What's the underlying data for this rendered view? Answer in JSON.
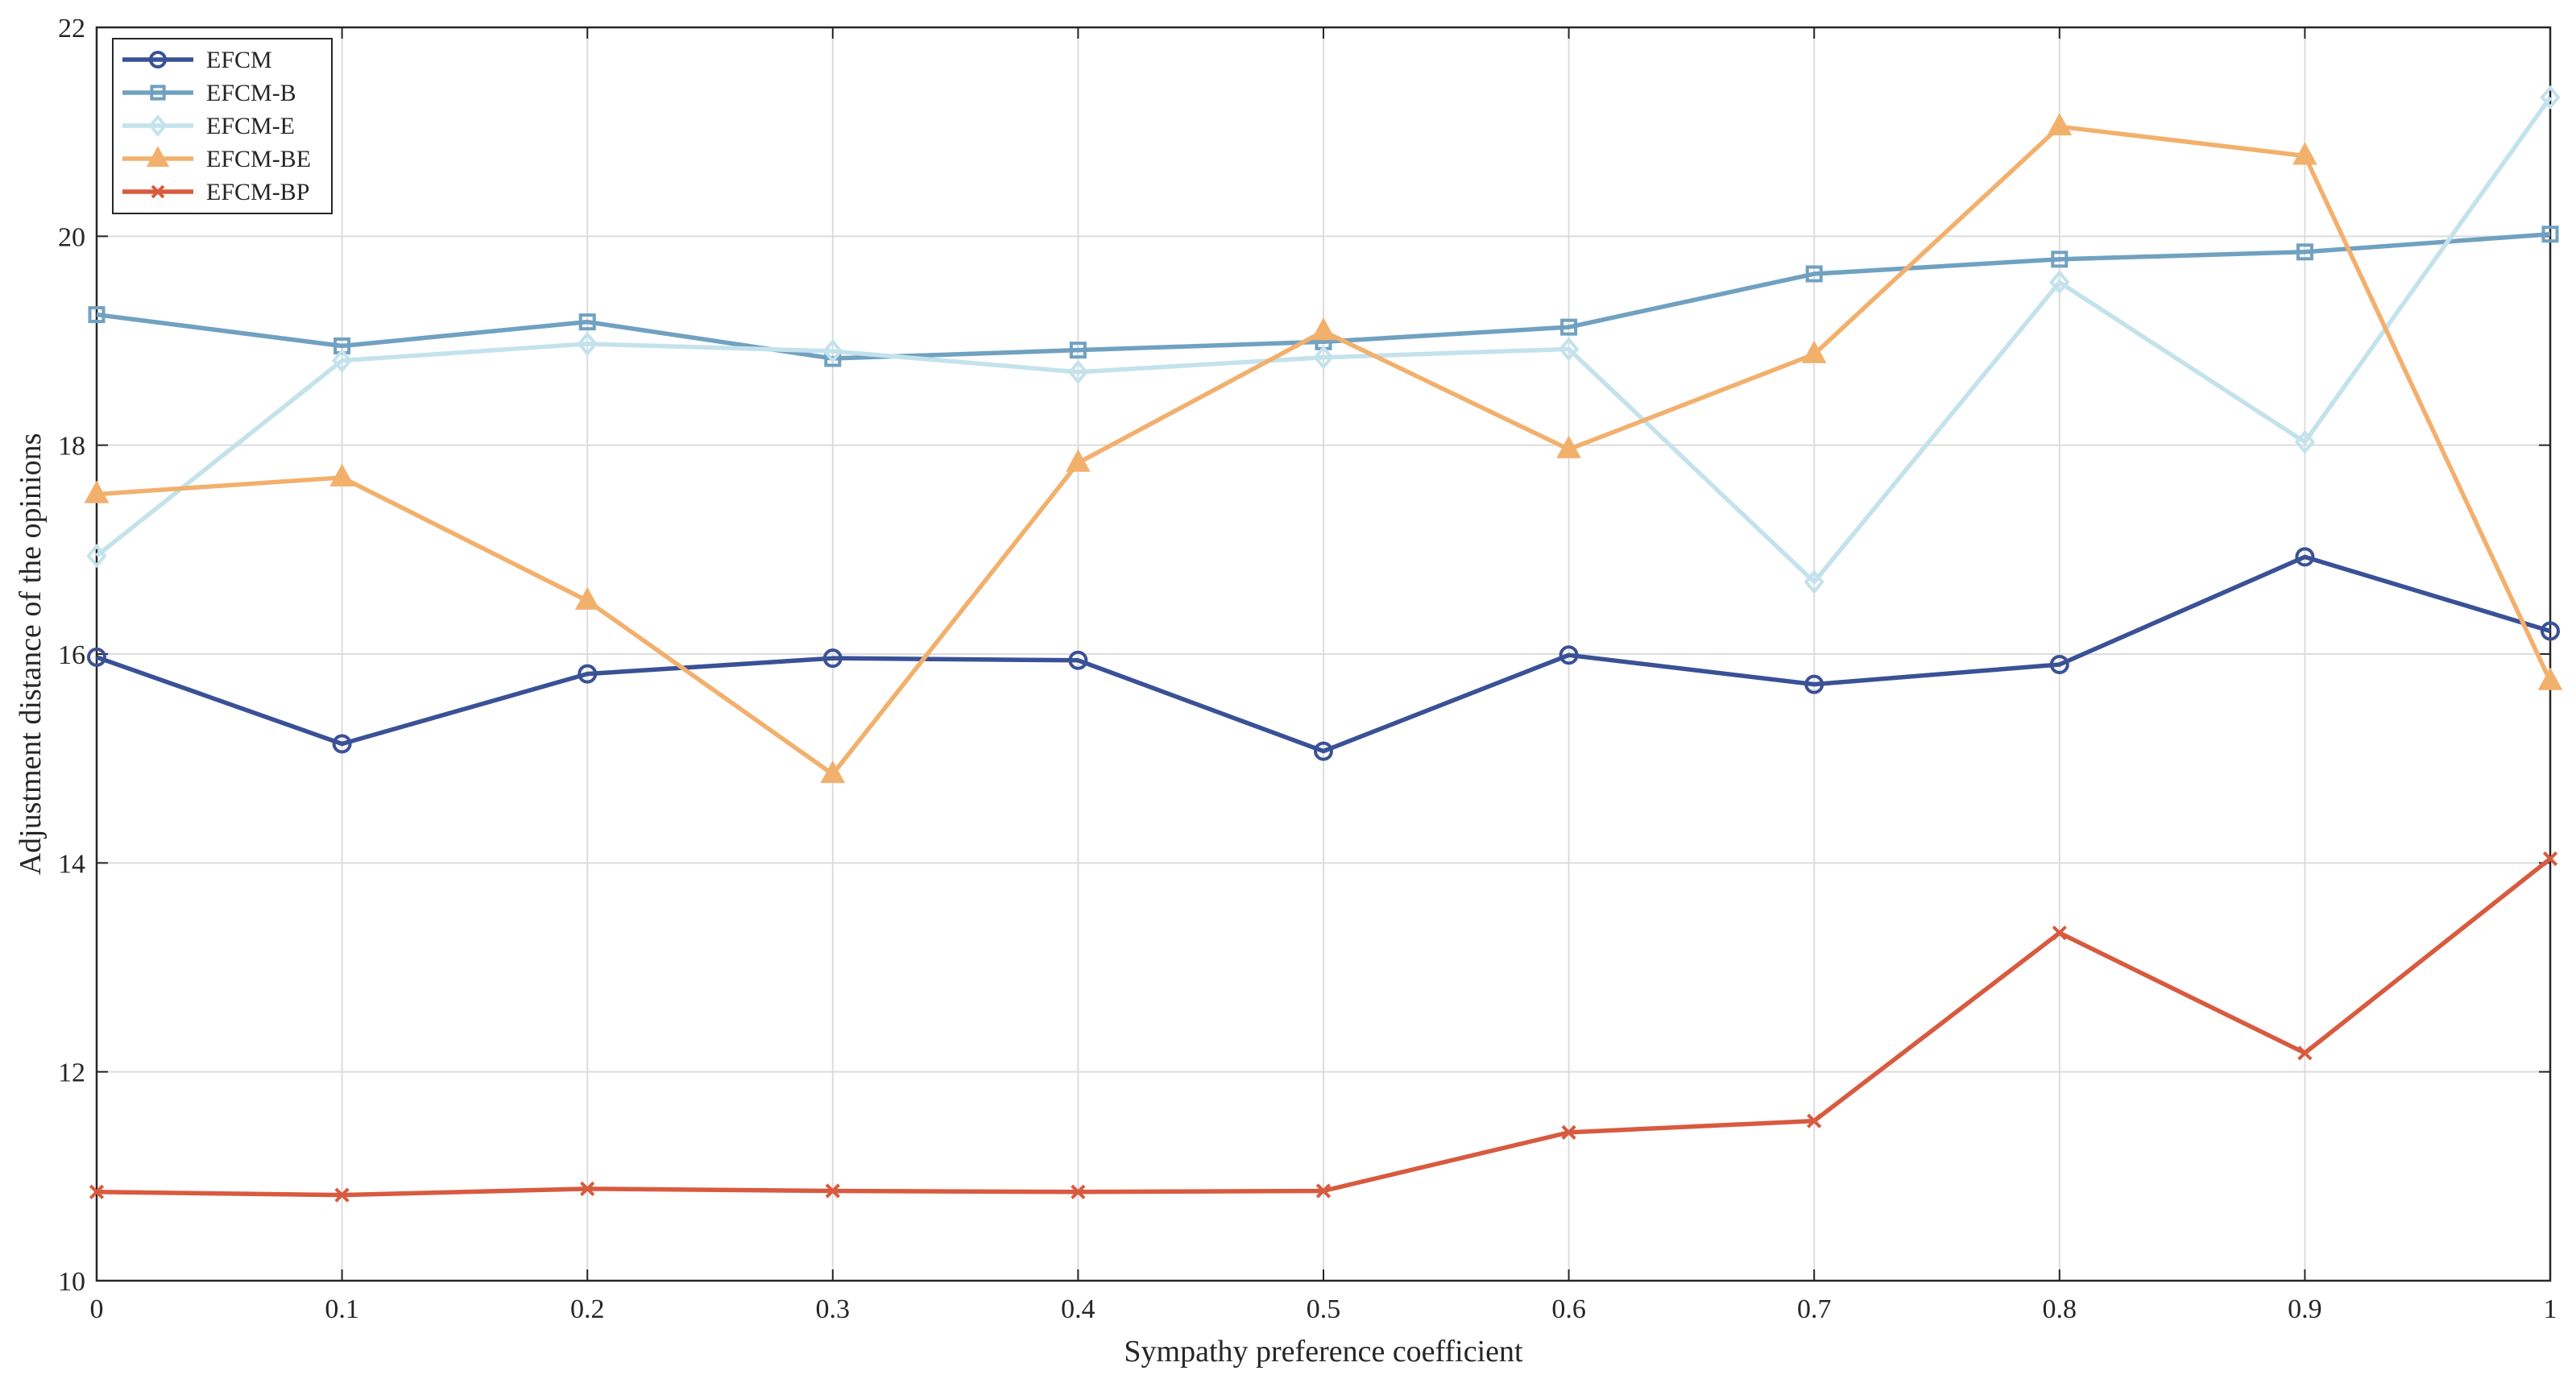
{
  "chart_data": {
    "type": "line",
    "title": "",
    "xlabel": "Sympathy preference coefficient",
    "ylabel": "Adjustment distance of the opinions",
    "xlim": [
      0,
      1
    ],
    "ylim": [
      10,
      22
    ],
    "grid": true,
    "legend_position": "top-left",
    "x": [
      0,
      0.1,
      0.2,
      0.3,
      0.4,
      0.5,
      0.6,
      0.7,
      0.8,
      0.9,
      1
    ],
    "x_ticks": [
      "0",
      "0.1",
      "0.2",
      "0.3",
      "0.4",
      "0.5",
      "0.6",
      "0.7",
      "0.8",
      "0.9",
      "1"
    ],
    "y_ticks": [
      "10",
      "12",
      "14",
      "16",
      "18",
      "20",
      "22"
    ],
    "series": [
      {
        "name": "EFCM",
        "color": "#3a5196",
        "marker": "circle",
        "values": [
          15.97,
          15.14,
          15.81,
          15.96,
          15.94,
          15.07,
          15.99,
          15.71,
          15.9,
          16.93,
          16.22
        ]
      },
      {
        "name": "EFCM-B",
        "color": "#70a1c1",
        "marker": "square",
        "values": [
          19.25,
          18.95,
          19.18,
          18.83,
          18.91,
          18.99,
          19.13,
          19.64,
          19.78,
          19.85,
          20.02
        ]
      },
      {
        "name": "EFCM-E",
        "color": "#c3e2ec",
        "marker": "diamond",
        "values": [
          16.94,
          18.81,
          18.97,
          18.9,
          18.7,
          18.84,
          18.92,
          16.69,
          19.56,
          18.03,
          21.33
        ]
      },
      {
        "name": "EFCM-BE",
        "color": "#f2b06d",
        "marker": "triangle",
        "values": [
          17.53,
          17.69,
          16.51,
          14.85,
          17.83,
          19.09,
          17.96,
          18.87,
          21.05,
          20.77,
          15.74
        ]
      },
      {
        "name": "EFCM-BP",
        "color": "#d85a3f",
        "marker": "x",
        "values": [
          10.85,
          10.82,
          10.88,
          10.86,
          10.85,
          10.86,
          11.42,
          11.53,
          13.33,
          12.18,
          14.04
        ]
      }
    ]
  }
}
